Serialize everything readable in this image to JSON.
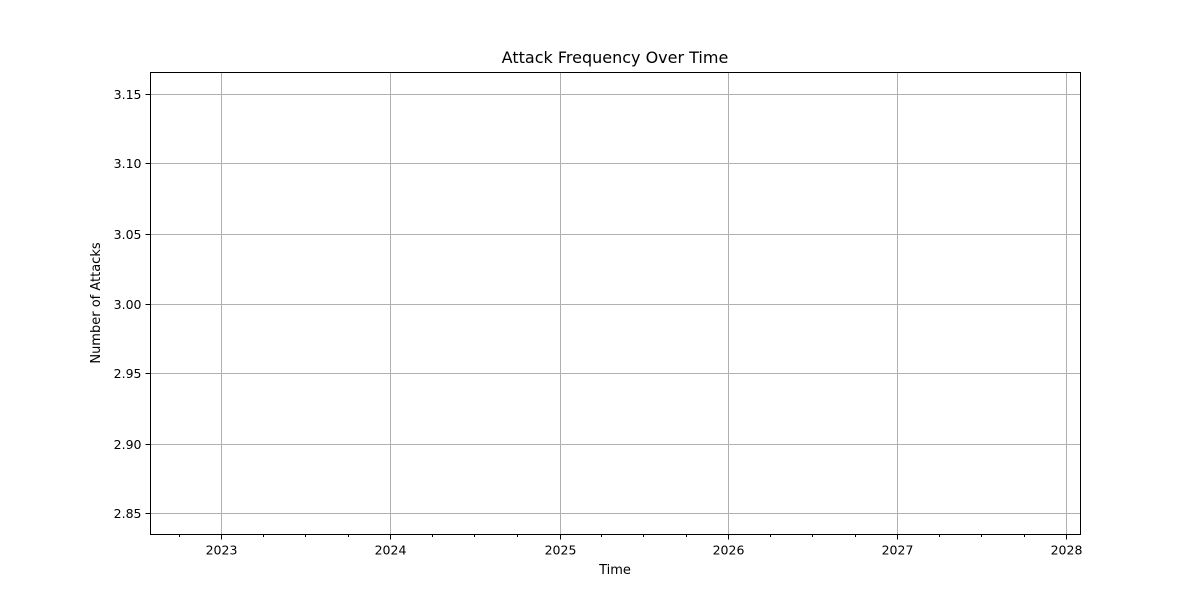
{
  "chart_data": {
    "type": "line",
    "title": "Attack Frequency Over Time",
    "xlabel": "Time",
    "ylabel": "Number of Attacks",
    "x_ticks": [
      "2023",
      "2024",
      "2025",
      "2026",
      "2027",
      "2028"
    ],
    "y_ticks": [
      "2.85",
      "2.90",
      "2.95",
      "3.00",
      "3.05",
      "3.10",
      "3.15"
    ],
    "xlim": [
      "2022-08-01",
      "2028-02-01"
    ],
    "ylim": [
      2.835,
      3.165
    ],
    "grid": true,
    "series": [
      {
        "x": [],
        "y": []
      }
    ]
  },
  "colors": {
    "grid": "#b0b0b0",
    "axes": "#000000"
  }
}
